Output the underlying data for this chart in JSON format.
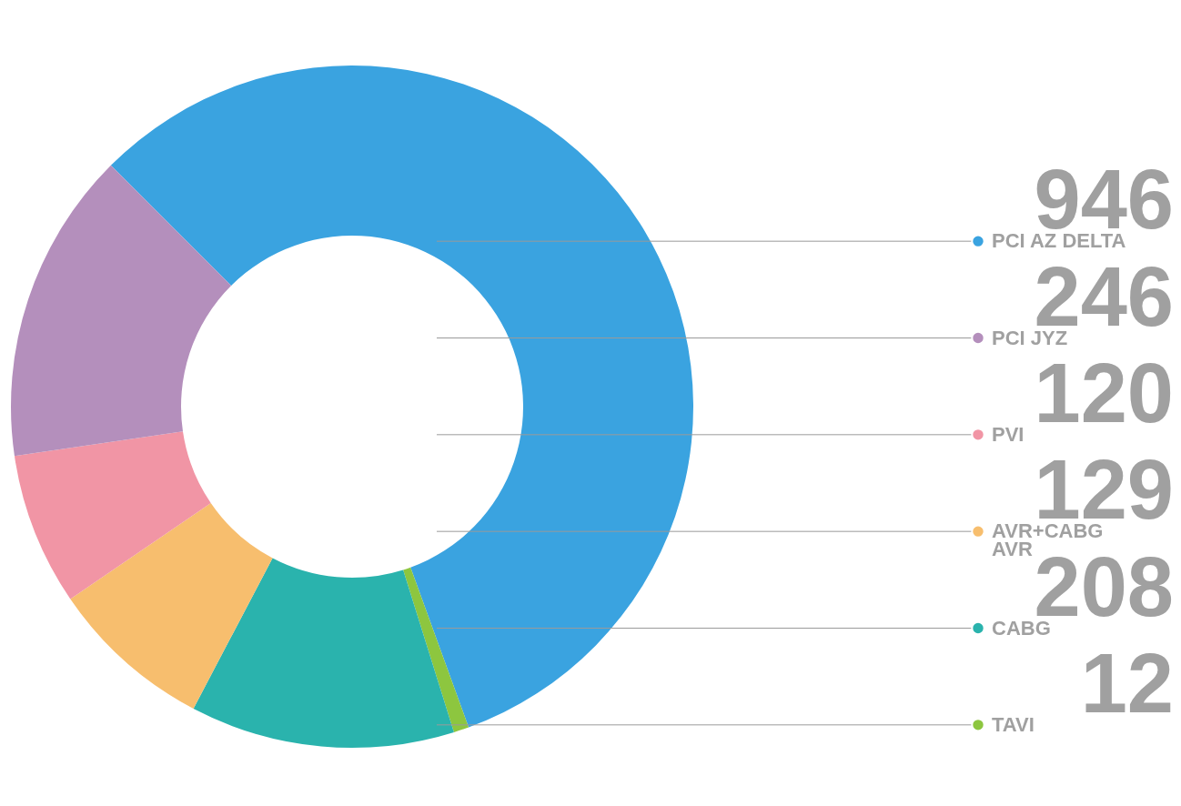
{
  "chart_data": {
    "type": "donut",
    "categories": [
      "PCI AZ DELTA",
      "TAVI",
      "CABG",
      "AVR+CABG\nAVR",
      "PVI",
      "PCI JYZ"
    ],
    "values": [
      946,
      12,
      208,
      129,
      120,
      246
    ],
    "colors": [
      "#3aa3e0",
      "#8dc63f",
      "#2ab3ad",
      "#f7be6e",
      "#f195a5",
      "#b48fbc"
    ],
    "data_labels": true,
    "legend": "right"
  }
}
